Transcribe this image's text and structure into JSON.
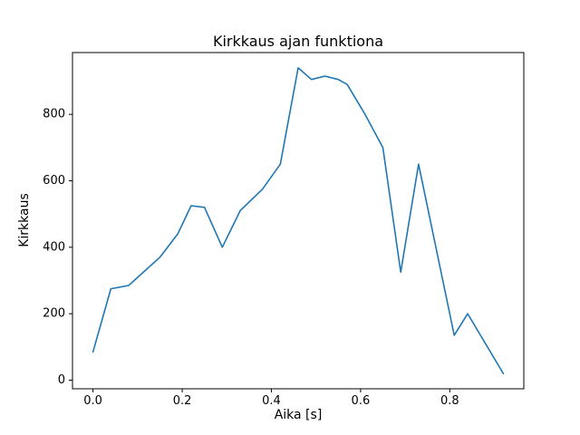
{
  "figure": {
    "title": "Kirkkaus ajan funktiona",
    "xlabel": "Aika [s]",
    "ylabel": "Kirkkaus"
  },
  "chart_data": {
    "type": "line",
    "title": "Kirkkaus ajan funktiona",
    "xlabel": "Aika [s]",
    "ylabel": "Kirkkaus",
    "x": [
      0.0,
      0.04,
      0.08,
      0.15,
      0.19,
      0.22,
      0.25,
      0.29,
      0.33,
      0.38,
      0.42,
      0.46,
      0.49,
      0.52,
      0.55,
      0.57,
      0.61,
      0.65,
      0.69,
      0.73,
      0.81,
      0.84,
      0.92
    ],
    "y": [
      85,
      275,
      285,
      370,
      440,
      525,
      520,
      400,
      510,
      575,
      650,
      940,
      905,
      915,
      905,
      890,
      800,
      700,
      325,
      650,
      135,
      200,
      20
    ],
    "xlim": [
      -0.046,
      0.966
    ],
    "ylim": [
      -26,
      986
    ],
    "xticks": {
      "values": [
        0.0,
        0.2,
        0.4,
        0.6,
        0.8
      ],
      "labels": [
        "0.0",
        "0.2",
        "0.4",
        "0.6",
        "0.8"
      ]
    },
    "yticks": {
      "values": [
        0,
        200,
        400,
        600,
        800
      ],
      "labels": [
        "0",
        "200",
        "400",
        "600",
        "800"
      ]
    },
    "line_color": "#1f77b4",
    "spine_color": "#000000",
    "grid": false,
    "legend": "none"
  }
}
